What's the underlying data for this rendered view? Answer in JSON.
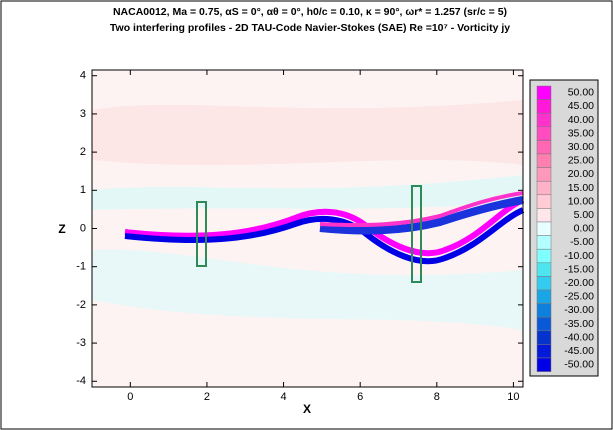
{
  "chart_data": {
    "type": "contour",
    "title": "NACA0012, Ma = 0.75, αS = 0°, αθ = 0°, h0/c = 0.10,  κ = 90°, ωr* = 1.257 (sr/c = 5)",
    "subtitle": "Two interfering profiles - 2D TAU-Code Navier-Stokes (SAE) Re =10⁷ - Vorticity jy",
    "x_label": "X",
    "y_label": "Z",
    "xlim": [
      -1,
      10.25
    ],
    "ylim": [
      -4.15,
      4.15
    ],
    "xticks": [
      0,
      2,
      4,
      6,
      8,
      10
    ],
    "yticks": [
      -4,
      -3,
      -2,
      -1,
      0,
      1,
      2,
      3,
      4
    ],
    "colorbar": {
      "levels": [
        {
          "value": 50,
          "label": "50.00"
        },
        {
          "value": 45,
          "label": "45.00"
        },
        {
          "value": 40,
          "label": "40.00"
        },
        {
          "value": 35,
          "label": "35.00"
        },
        {
          "value": 30,
          "label": "30.00"
        },
        {
          "value": 25,
          "label": "25.00"
        },
        {
          "value": 20,
          "label": "20.00"
        },
        {
          "value": 15,
          "label": "15.00"
        },
        {
          "value": 10,
          "label": "10.00"
        },
        {
          "value": 5,
          "label": "5.00"
        },
        {
          "value": 0,
          "label": "0.00"
        },
        {
          "value": -5,
          "label": "-5.00"
        },
        {
          "value": -10,
          "label": "-10.00"
        },
        {
          "value": -15,
          "label": "-15.00"
        },
        {
          "value": -20,
          "label": "-20.00"
        },
        {
          "value": -25,
          "label": "-25.00"
        },
        {
          "value": -30,
          "label": "-30.00"
        },
        {
          "value": -35,
          "label": "-35.00"
        },
        {
          "value": -40,
          "label": "-40.00"
        },
        {
          "value": -45,
          "label": "-45.00"
        },
        {
          "value": -50,
          "label": "-50.00"
        }
      ],
      "colors": [
        "#ff00ff",
        "#ff1ad9",
        "#ff33cc",
        "#ff4dbf",
        "#ff66b3",
        "#ff80b0",
        "#ff99bb",
        "#ffb3c8",
        "#ffccd6",
        "#ffe6ea",
        "#e8ffff",
        "#b3ffff",
        "#80ffff",
        "#4de6f0",
        "#33ccee",
        "#1aa6e6",
        "#0d80dd",
        "#0a59d6",
        "#0533cc",
        "#0519d9",
        "#0000e6"
      ]
    }
  }
}
